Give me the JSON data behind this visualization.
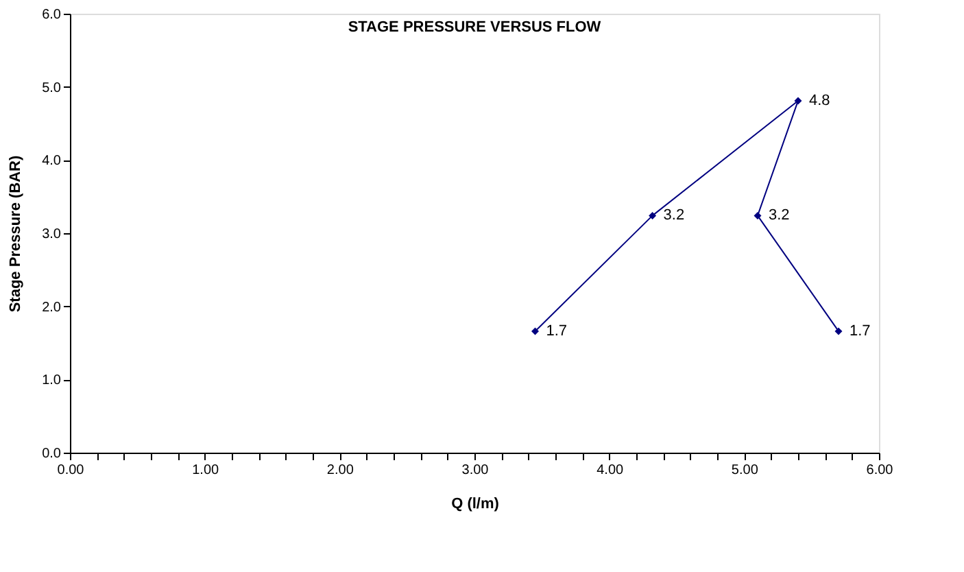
{
  "chart_data": {
    "type": "line",
    "title": "STAGE PRESSURE VERSUS FLOW",
    "xlabel": "Q (l/m)",
    "ylabel": "Stage Pressure (BAR)",
    "x": [
      3.45,
      4.32,
      5.4,
      5.1,
      5.7
    ],
    "series": [
      {
        "color": "#000080",
        "values": [
          1.66,
          3.24,
          4.81,
          3.24,
          1.66
        ],
        "value_labels": [
          "1.7",
          "3.2",
          "4.8",
          "3.2",
          "1.7"
        ]
      }
    ],
    "marker": "diamond",
    "line_style": "solid",
    "grid": false,
    "xlim": [
      0,
      6
    ],
    "ylim": [
      0,
      6
    ],
    "xticks": [
      {
        "value": 0,
        "label": "0.00"
      },
      {
        "value": 0.2,
        "label": null
      },
      {
        "value": 0.4,
        "label": null
      },
      {
        "value": 0.6,
        "label": null
      },
      {
        "value": 0.8,
        "label": null
      },
      {
        "value": 1,
        "label": "1.00"
      },
      {
        "value": 1.2,
        "label": null
      },
      {
        "value": 1.4,
        "label": null
      },
      {
        "value": 1.6,
        "label": null
      },
      {
        "value": 1.8,
        "label": null
      },
      {
        "value": 2,
        "label": "2.00"
      },
      {
        "value": 2.2,
        "label": null
      },
      {
        "value": 2.4,
        "label": null
      },
      {
        "value": 2.6,
        "label": null
      },
      {
        "value": 2.8,
        "label": null
      },
      {
        "value": 3,
        "label": "3.00"
      },
      {
        "value": 3.2,
        "label": null
      },
      {
        "value": 3.4,
        "label": null
      },
      {
        "value": 3.6,
        "label": null
      },
      {
        "value": 3.8,
        "label": null
      },
      {
        "value": 4,
        "label": "4.00"
      },
      {
        "value": 4.2,
        "label": null
      },
      {
        "value": 4.4,
        "label": null
      },
      {
        "value": 4.6,
        "label": null
      },
      {
        "value": 4.8,
        "label": null
      },
      {
        "value": 5,
        "label": "5.00"
      },
      {
        "value": 5.2,
        "label": null
      },
      {
        "value": 5.4,
        "label": null
      },
      {
        "value": 5.6,
        "label": null
      },
      {
        "value": 5.8,
        "label": null
      },
      {
        "value": 6,
        "label": "6.00"
      }
    ],
    "yticks": [
      {
        "value": 0,
        "label": "0.0"
      },
      {
        "value": 1,
        "label": "1.0"
      },
      {
        "value": 2,
        "label": "2.0"
      },
      {
        "value": 3,
        "label": "3.0"
      },
      {
        "value": 4,
        "label": "4.0"
      },
      {
        "value": 5,
        "label": "5.0"
      },
      {
        "value": 6,
        "label": "6.0"
      }
    ]
  }
}
